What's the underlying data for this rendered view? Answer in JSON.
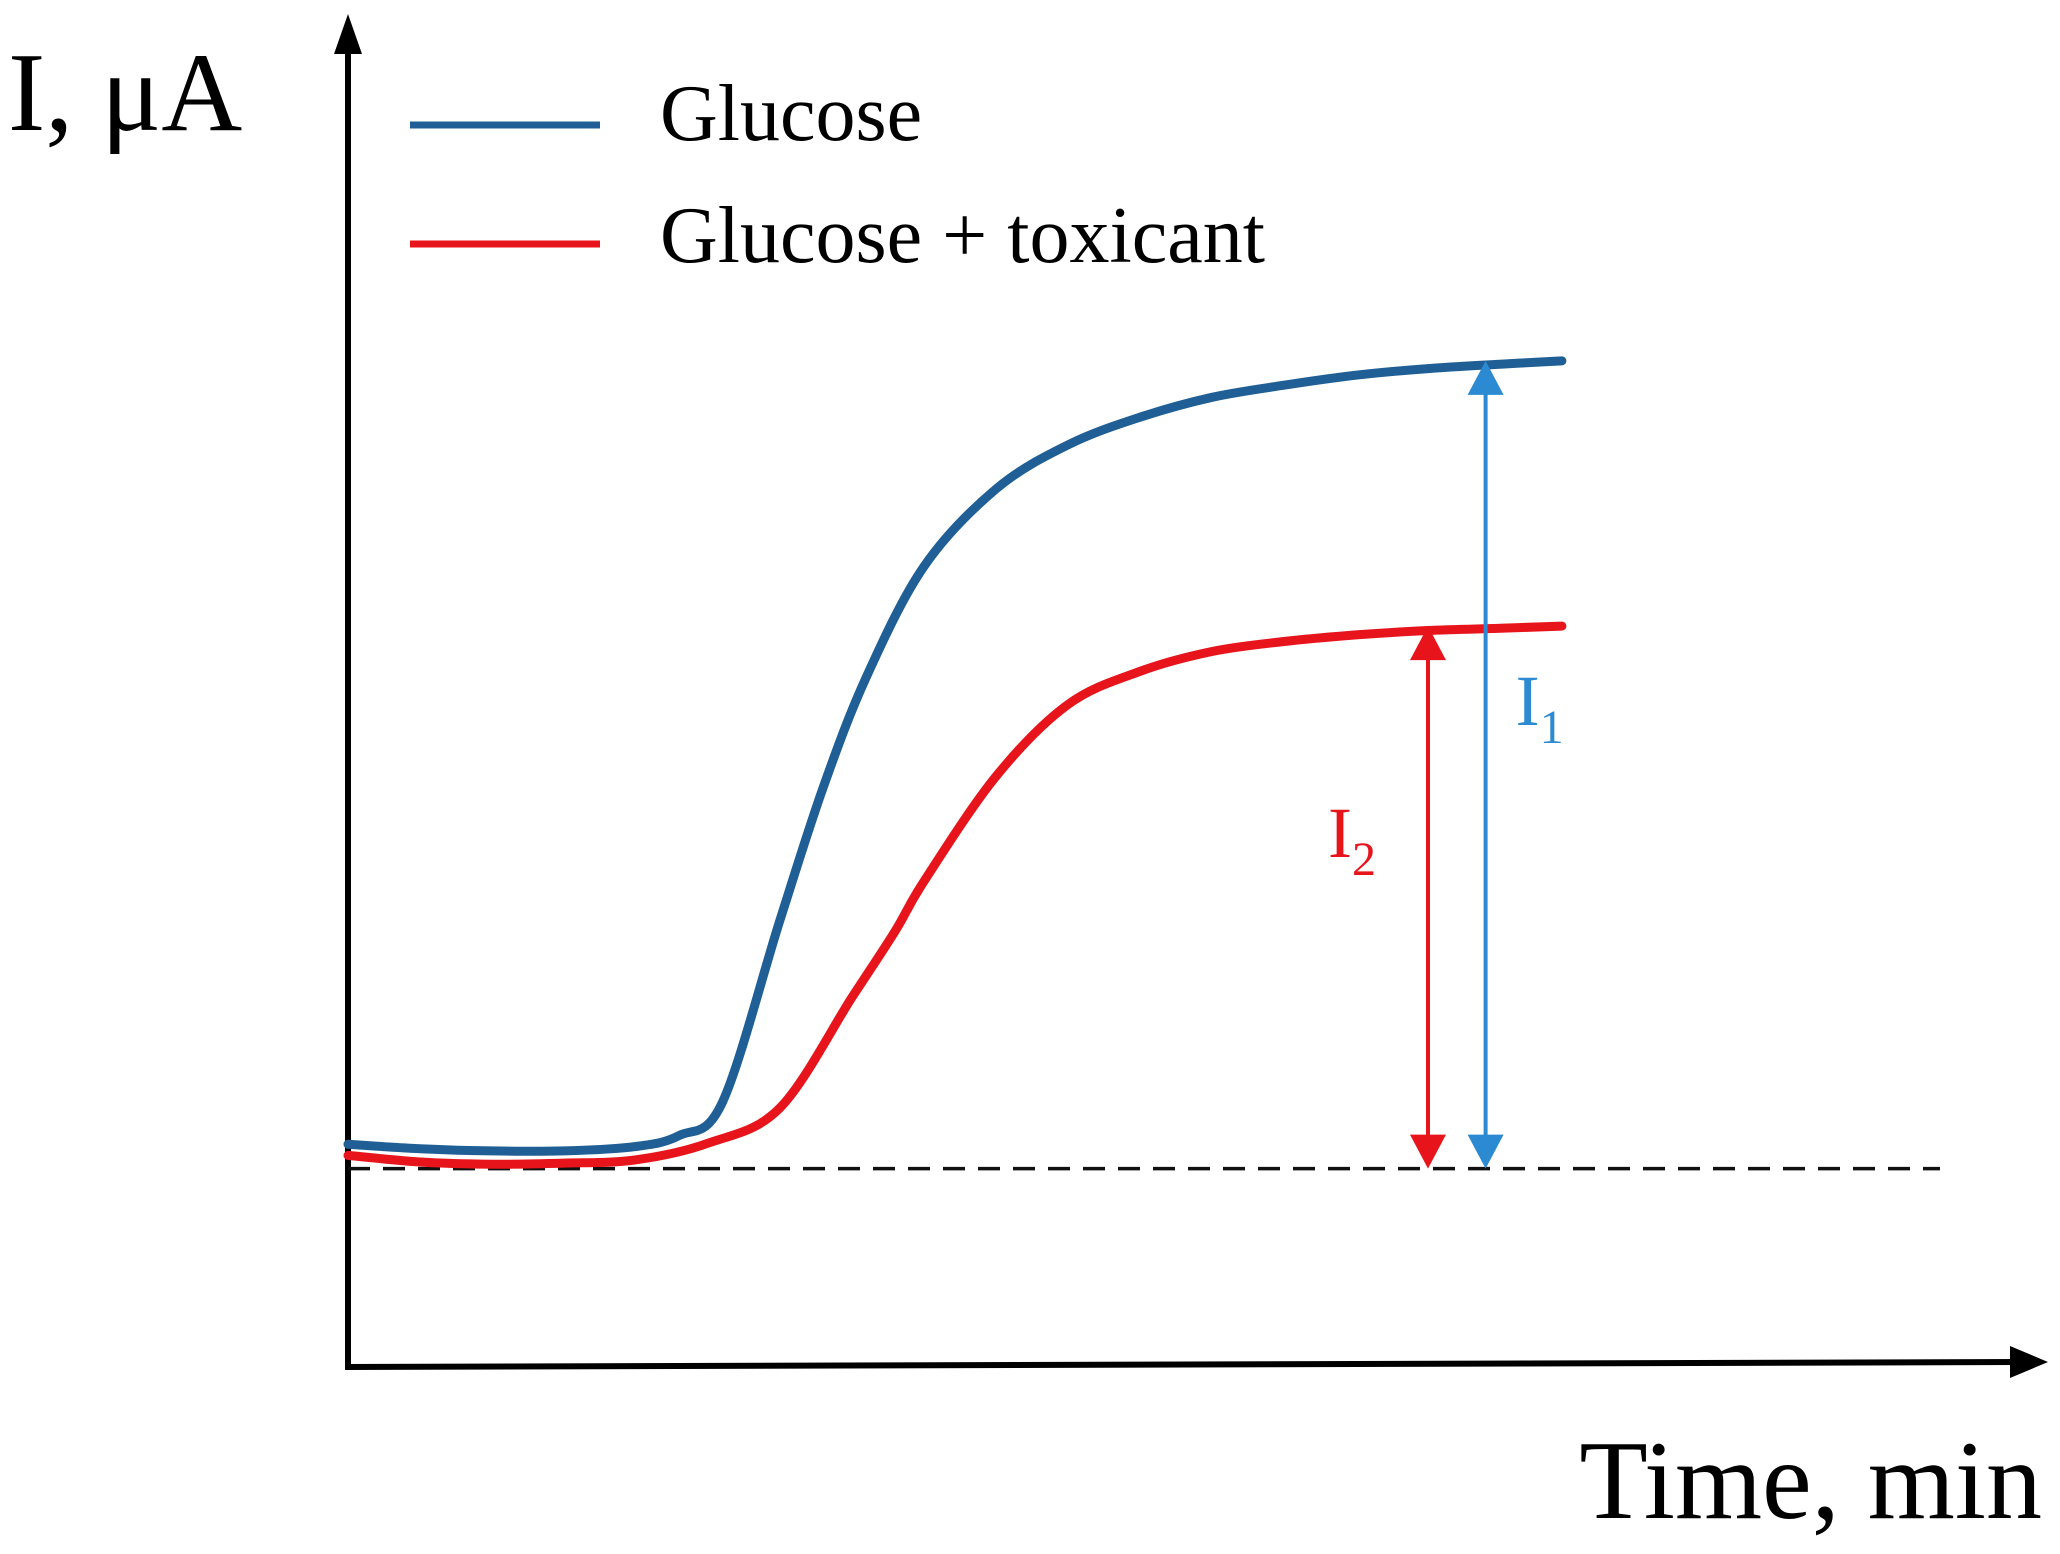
{
  "chart_data": {
    "type": "line",
    "title": "",
    "ylabel": "I, μA",
    "xlabel": "Time, min",
    "xlim": [
      0,
      100
    ],
    "ylim": [
      0,
      100
    ],
    "grid": false,
    "legend": "top-left",
    "baseline": {
      "value": 17.5,
      "style": "dashed",
      "color": "#111111"
    },
    "series": [
      {
        "name": "Glucose",
        "color": "#1f5f95",
        "x": [
          0,
          5,
          10,
          15,
          20,
          23,
          26,
          30,
          33,
          36,
          40,
          45,
          50,
          55,
          60,
          65,
          70,
          75,
          80,
          84.3
        ],
        "y": [
          19.7,
          19.3,
          19.1,
          19.1,
          19.5,
          20.5,
          23.5,
          40,
          52,
          62,
          72,
          79,
          83,
          85.5,
          87.3,
          88.4,
          89.3,
          89.9,
          90.3,
          90.6
        ]
      },
      {
        "name": "Glucose + toxicant",
        "color": "#e8141b",
        "x": [
          0,
          5,
          10,
          15,
          20,
          25,
          30,
          35,
          38,
          40,
          45,
          50,
          55,
          60,
          65,
          70,
          75,
          80,
          84.3
        ],
        "y": [
          18.7,
          18.1,
          17.9,
          18.0,
          18.3,
          19.8,
          23,
          33,
          39,
          43.5,
          53,
          59.5,
          62.5,
          64.3,
          65.2,
          65.8,
          66.2,
          66.4,
          66.6
        ]
      }
    ],
    "annotations": [
      {
        "id": "I1",
        "base": "I",
        "sub": "1",
        "color": "#2b8ad1",
        "x": 79,
        "y_from": 17.5,
        "y_to": 90.6
      },
      {
        "id": "I2",
        "base": "I",
        "sub": "2",
        "color": "#e8141b",
        "x": 75,
        "y_from": 17.5,
        "y_to": 66.6
      }
    ]
  }
}
